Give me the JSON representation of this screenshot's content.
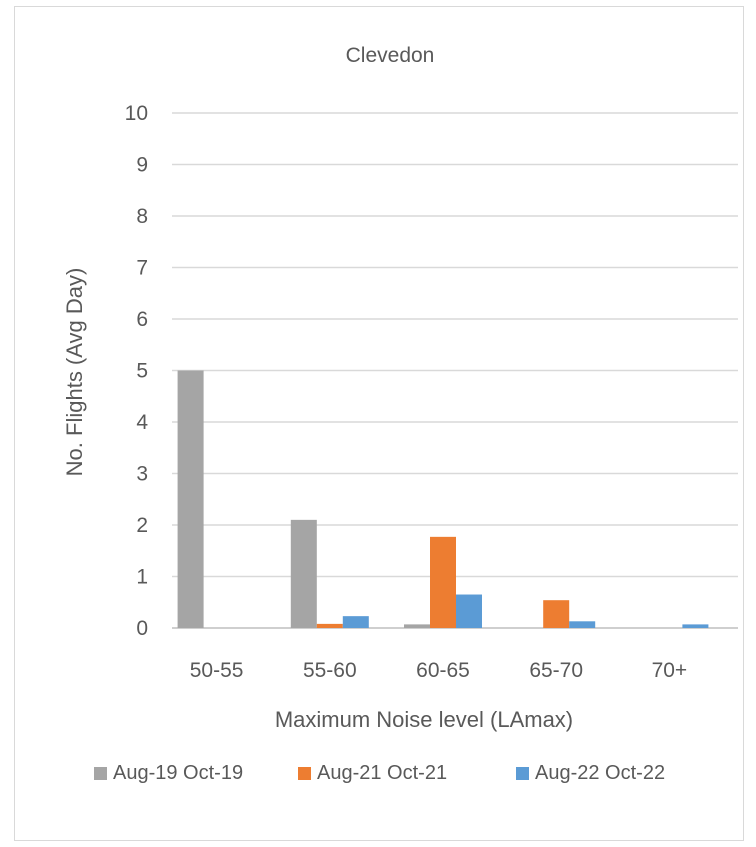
{
  "chart_data": {
    "type": "bar",
    "title": "Clevedon",
    "xlabel": "Maximum Noise level (LAmax)",
    "ylabel": "No. Flights (Avg Day)",
    "categories": [
      "50-55",
      "55-60",
      "60-65",
      "65-70",
      "70+"
    ],
    "ylim": [
      0,
      10
    ],
    "yticks": [
      0,
      1,
      2,
      3,
      4,
      5,
      6,
      7,
      8,
      9,
      10
    ],
    "grid": true,
    "legend": "bottom",
    "series": [
      {
        "name": "Aug-19 Oct-19",
        "color": "#a5a5a5",
        "values": [
          5.0,
          2.1,
          0.07,
          0.0,
          0.0
        ]
      },
      {
        "name": "Aug-21 Oct-21",
        "color": "#ed7d31",
        "values": [
          0.0,
          0.08,
          1.77,
          0.54,
          0.0
        ]
      },
      {
        "name": "Aug-22 Oct-22",
        "color": "#5b9bd5",
        "values": [
          0.0,
          0.23,
          0.65,
          0.13,
          0.07
        ]
      }
    ]
  }
}
